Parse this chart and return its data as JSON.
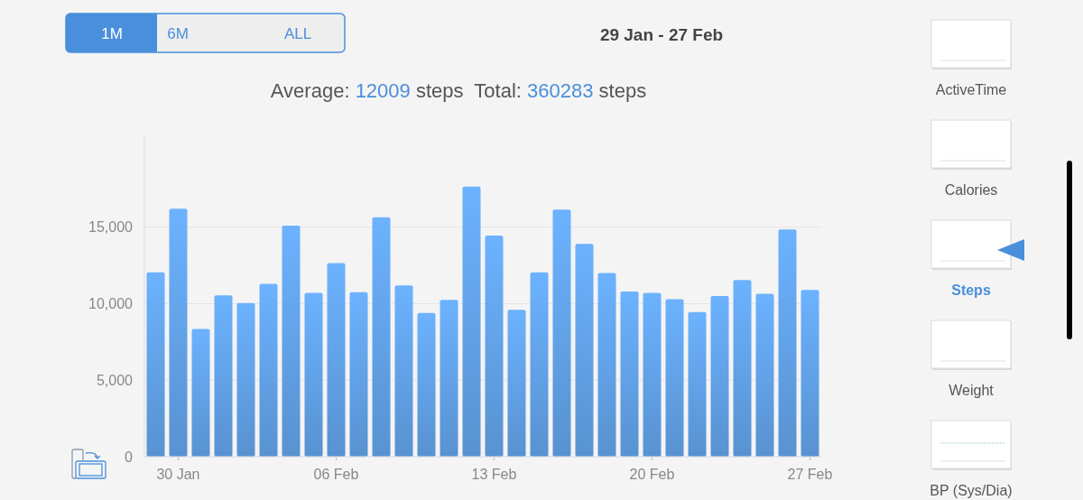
{
  "chart_data": {
    "type": "bar",
    "title": "29 Jan - 27 Feb",
    "subtitle": "Average: 12009 steps  Total: 360283 steps",
    "categories": [
      null,
      "30 Jan",
      null,
      null,
      null,
      null,
      null,
      null,
      "06 Feb",
      null,
      null,
      null,
      null,
      null,
      null,
      "13 Feb",
      null,
      null,
      null,
      null,
      null,
      null,
      "20 Feb",
      null,
      null,
      null,
      null,
      null,
      null,
      "27 Feb"
    ],
    "values": [
      12050,
      16200,
      8350,
      10550,
      10050,
      11300,
      15100,
      10700,
      12650,
      10750,
      15650,
      11200,
      9400,
      10250,
      17650,
      14450,
      9600,
      12050,
      16150,
      13900,
      12000,
      10800,
      10700,
      10300,
      9450,
      10500,
      11550,
      10650,
      14850,
      10900
    ],
    "color": "#5f9de0",
    "ylim": [
      0,
      21000
    ],
    "yticks": [
      0,
      {
        "value": 5000,
        "label": "5,000"
      },
      {
        "value": 10000,
        "label": "10,000"
      },
      {
        "value": 15000,
        "label": "15,000"
      }
    ],
    "grid": "y",
    "annotations": [
      "1M",
      "6M",
      "ALL",
      "ActiveTime",
      "Calories",
      "Steps",
      "Weight",
      "BP (Sys/Dia)"
    ]
  }
}
